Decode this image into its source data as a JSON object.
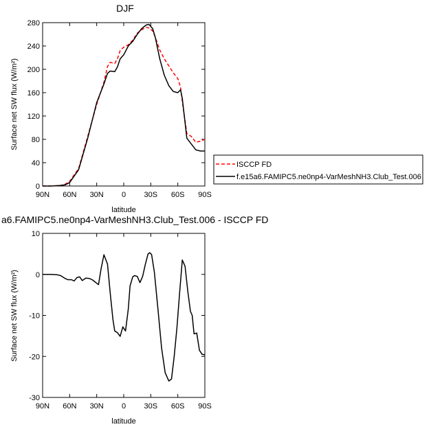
{
  "chart_data": [
    {
      "type": "line",
      "title": "DJF",
      "xlabel": "latitude",
      "ylabel": "Surface net SW flux (W/m²)",
      "xlim": [
        90,
        -90
      ],
      "ylim": [
        0,
        280
      ],
      "xticks": [
        90,
        60,
        30,
        0,
        -30,
        -60,
        -90
      ],
      "xticklabels": [
        "90N",
        "60N",
        "30N",
        "0",
        "30S",
        "60S",
        "90S"
      ],
      "yticks": [
        0,
        40,
        80,
        120,
        160,
        200,
        240,
        280
      ],
      "yticklabels": [
        "0",
        "40",
        "80",
        "120",
        "160",
        "200",
        "240",
        "280"
      ],
      "grid": false,
      "legend_position": "right",
      "series": [
        {
          "name": "ISCCP FD",
          "color": "#ff0000",
          "style": "dashed",
          "x": [
            90,
            80,
            70,
            65,
            60,
            50,
            40,
            30,
            22,
            18,
            15,
            10,
            7,
            4,
            0,
            -5,
            -10,
            -15,
            -20,
            -25,
            -28,
            -32,
            -35,
            -40,
            -45,
            -50,
            -55,
            -60,
            -63,
            -65,
            -70,
            -75,
            -80,
            -85,
            -90
          ],
          "y": [
            0,
            0,
            1,
            3,
            8,
            30,
            85,
            140,
            178,
            205,
            212,
            210,
            218,
            232,
            238,
            242,
            250,
            262,
            268,
            272,
            271,
            266,
            255,
            233,
            218,
            206,
            194,
            184,
            170,
            145,
            90,
            85,
            75,
            77,
            80
          ]
        },
        {
          "name": "f.e15a6.FAMIPC5.ne0np4-VarMeshNH3.Club_Test.006",
          "color": "#000000",
          "style": "solid",
          "x": [
            90,
            80,
            70,
            65,
            60,
            50,
            40,
            30,
            22,
            18,
            15,
            10,
            7,
            4,
            0,
            -5,
            -10,
            -15,
            -20,
            -25,
            -28,
            -32,
            -35,
            -40,
            -45,
            -50,
            -55,
            -60,
            -63,
            -65,
            -70,
            -75,
            -80,
            -85,
            -90
          ],
          "y": [
            0,
            0,
            1,
            2,
            6,
            28,
            82,
            143,
            175,
            193,
            197,
            196,
            204,
            218,
            225,
            240,
            248,
            260,
            270,
            276,
            277,
            270,
            255,
            218,
            190,
            172,
            162,
            160,
            165,
            150,
            82,
            72,
            62,
            60,
            60
          ]
        }
      ]
    },
    {
      "type": "line",
      "title": "a6.FAMIPC5.ne0np4-VarMeshNH3.Club_Test.006 - ISCCP FD",
      "xlabel": "latitude",
      "ylabel": "Surface net SW flux (W/m²)",
      "xlim": [
        90,
        -90
      ],
      "ylim": [
        -30,
        10
      ],
      "xticks": [
        90,
        60,
        30,
        0,
        -30,
        -60,
        -90
      ],
      "xticklabels": [
        "90N",
        "60N",
        "30N",
        "0",
        "30S",
        "60S",
        "90S"
      ],
      "yticks": [
        -30,
        -20,
        -10,
        0,
        10
      ],
      "yticklabels": [
        "-30",
        "-20",
        "-10",
        "0",
        "10"
      ],
      "grid": false,
      "series": [
        {
          "color": "#000000",
          "style": "solid",
          "x": [
            90,
            80,
            74,
            70,
            65,
            62,
            58,
            55,
            52,
            49,
            46,
            42,
            38,
            35,
            32,
            28,
            25,
            22,
            18,
            15,
            12,
            10,
            7,
            4,
            1,
            -2,
            -5,
            -7,
            -10,
            -12,
            -15,
            -18,
            -21,
            -24,
            -27,
            -29,
            -31,
            -34,
            -38,
            -42,
            -46,
            -50,
            -53,
            -56,
            -59,
            -62,
            -65,
            -68,
            -71,
            -74,
            -76,
            -78,
            -81,
            -84,
            -87,
            -90
          ],
          "y": [
            0,
            0,
            -0.1,
            -0.3,
            -1.0,
            -1.3,
            -1.3,
            -1.6,
            -0.8,
            -0.6,
            -1.5,
            -0.9,
            -1.0,
            -1.3,
            -1.8,
            -2.5,
            1.5,
            4.8,
            2.5,
            -4.5,
            -11,
            -13.8,
            -14.2,
            -15.1,
            -12.8,
            -13.8,
            -8.5,
            -2.8,
            -0.6,
            -0.3,
            -0.5,
            -2.0,
            -0.5,
            2.5,
            5.0,
            5.3,
            4.8,
            0.5,
            -8.5,
            -18,
            -24,
            -26,
            -25.5,
            -20,
            -13,
            -4.5,
            3.5,
            2.0,
            -4.0,
            -9.0,
            -10.0,
            -14.5,
            -14.3,
            -18.5,
            -19.5,
            -19.6
          ]
        }
      ]
    }
  ]
}
